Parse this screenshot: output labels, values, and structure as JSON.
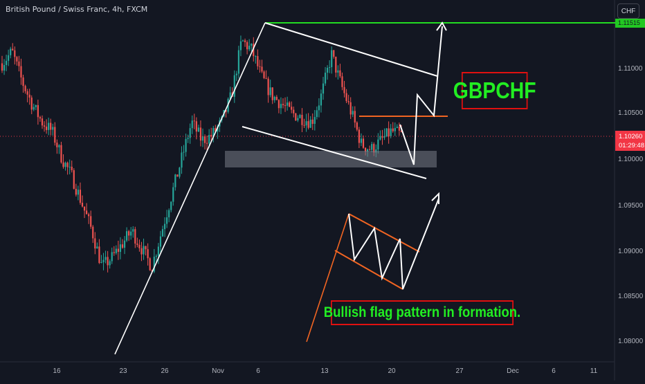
{
  "header": {
    "symbol_line": "British Pound / Swiss Franc, 4h, FXCM"
  },
  "currency_button": "CHF",
  "price_axis": {
    "labels": [
      "1.11000",
      "1.10500",
      "1.10000",
      "1.09500",
      "1.09000",
      "1.08500",
      "1.08000"
    ],
    "last_price": "1.10260",
    "countdown": "01:29:48",
    "resistance_tag": "1.11515",
    "resistance_color": "#22c822",
    "last_price_color": "#f23645"
  },
  "time_axis": {
    "labels": [
      "16",
      "23",
      "26",
      "Nov",
      "6",
      "13",
      "20",
      "27",
      "Dec",
      "6",
      "11"
    ]
  },
  "annotations": {
    "title": "GBPCHF",
    "note": "Bullish flag pattern in formation.",
    "text_color": "#22ee22",
    "box_color": "#e01010"
  },
  "chart_data": {
    "type": "candlestick",
    "symbol": "GBPCHF",
    "timeframe": "4h",
    "ylim": [
      1.0775,
      1.1175
    ],
    "resistance_level": 1.11515,
    "last_price": 1.1026,
    "flag_support_zone": [
      1.0992,
      1.1012
    ],
    "path": [
      [
        "16",
        1.1105
      ],
      [
        "",
        1.1118
      ],
      [
        "",
        1.1085
      ],
      [
        "",
        1.106
      ],
      [
        "",
        1.104
      ],
      [
        "",
        1.103
      ],
      [
        "",
        1.1
      ],
      [
        "",
        1.098
      ],
      [
        "",
        1.095
      ],
      [
        "",
        1.092
      ],
      [
        "23",
        1.088
      ],
      [
        "",
        1.089
      ],
      [
        "",
        1.0905
      ],
      [
        "",
        1.092
      ],
      [
        "26",
        1.09
      ],
      [
        "",
        1.088
      ],
      [
        "",
        1.092
      ],
      [
        "",
        1.096
      ],
      [
        "",
        1.1
      ],
      [
        "",
        1.104
      ],
      [
        "Nov",
        1.102
      ],
      [
        "",
        1.1025
      ],
      [
        "",
        1.104
      ],
      [
        "",
        1.107
      ],
      [
        "6",
        1.113
      ],
      [
        "",
        1.112
      ],
      [
        "",
        1.109
      ],
      [
        "",
        1.107
      ],
      [
        "",
        1.106
      ],
      [
        "",
        1.105
      ],
      [
        "",
        1.1045
      ],
      [
        "13",
        1.104
      ],
      [
        "",
        1.107
      ],
      [
        "",
        1.1115
      ],
      [
        "",
        1.108
      ],
      [
        "",
        1.105
      ],
      [
        "",
        1.1015
      ],
      [
        "20",
        1.101
      ],
      [
        "",
        1.102
      ],
      [
        "",
        1.103
      ],
      [
        "",
        1.1026
      ]
    ],
    "up_color": "#26a69a",
    "down_color": "#ef5350"
  }
}
